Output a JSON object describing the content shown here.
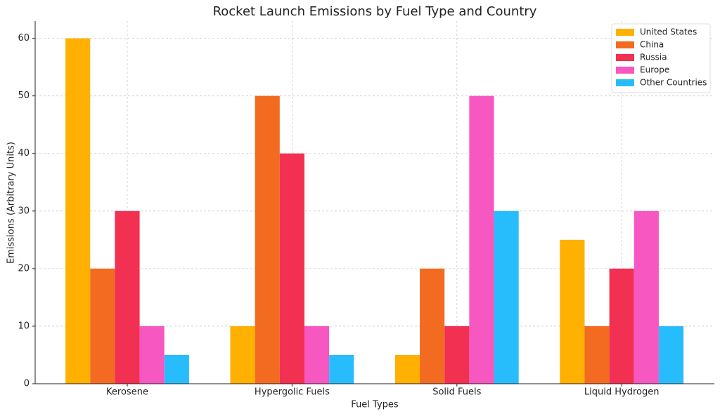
{
  "chart_data": {
    "type": "bar",
    "title": "Rocket Launch Emissions by Fuel Type and Country",
    "x_label": "Fuel Types",
    "y_label": "Emissions (Arbitrary Units)",
    "categories": [
      "Kerosene",
      "Hypergolic Fuels",
      "Solid Fuels",
      "Liquid Hydrogen"
    ],
    "series": [
      {
        "name": "United States",
        "color": "#ffb000",
        "values": [
          60,
          10,
          5,
          25
        ]
      },
      {
        "name": "China",
        "color": "#f26b21",
        "values": [
          20,
          50,
          20,
          10
        ]
      },
      {
        "name": "Russia",
        "color": "#f23052",
        "values": [
          30,
          40,
          10,
          20
        ]
      },
      {
        "name": "Europe",
        "color": "#f757c0",
        "values": [
          10,
          10,
          50,
          30
        ]
      },
      {
        "name": "Other Countries",
        "color": "#27bdfc",
        "values": [
          5,
          5,
          30,
          10
        ]
      }
    ],
    "ylim": [
      0,
      63
    ],
    "yticks": [
      0,
      10,
      20,
      30,
      40,
      50,
      60
    ],
    "grid": true,
    "legend": "upper-right"
  }
}
